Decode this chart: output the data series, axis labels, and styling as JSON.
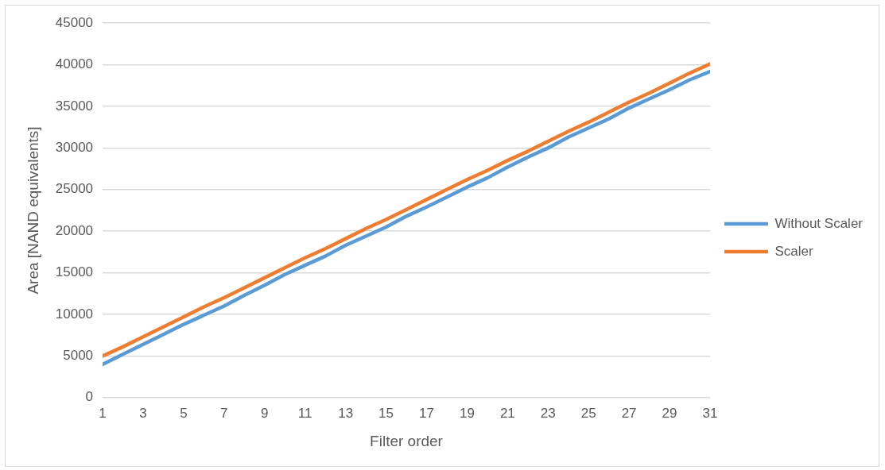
{
  "chart_data": {
    "type": "line",
    "xlabel": "Filter order",
    "ylabel": "Area [NAND equivalents]",
    "x": [
      1,
      2,
      3,
      4,
      5,
      6,
      7,
      8,
      9,
      10,
      11,
      12,
      13,
      14,
      15,
      16,
      17,
      18,
      19,
      20,
      21,
      22,
      23,
      24,
      25,
      26,
      27,
      28,
      29,
      30,
      31
    ],
    "xlim": [
      1,
      31
    ],
    "xticks": [
      1,
      3,
      5,
      7,
      9,
      11,
      13,
      15,
      17,
      19,
      21,
      23,
      25,
      27,
      29,
      31
    ],
    "series": [
      {
        "name": "Without Scaler",
        "color": "#5b9bd5",
        "values": [
          4000,
          5200,
          6400,
          7600,
          8800,
          9900,
          11000,
          12300,
          13500,
          14800,
          15900,
          17000,
          18300,
          19400,
          20500,
          21800,
          22900,
          24100,
          25300,
          26400,
          27700,
          28900,
          30000,
          31300,
          32400,
          33500,
          34800,
          35900,
          37000,
          38200,
          39200
        ]
      },
      {
        "name": "Scaler",
        "color": "#ed7d31",
        "values": [
          5000,
          6100,
          7300,
          8500,
          9700,
          10900,
          12000,
          13200,
          14400,
          15600,
          16800,
          17900,
          19100,
          20300,
          21400,
          22600,
          23800,
          25000,
          26200,
          27300,
          28500,
          29600,
          30800,
          32000,
          33100,
          34300,
          35500,
          36600,
          37800,
          39000,
          40100
        ]
      }
    ],
    "ylim": [
      0,
      45000
    ],
    "yticks": [
      0,
      5000,
      10000,
      15000,
      20000,
      25000,
      30000,
      35000,
      40000,
      45000
    ],
    "grid": "y",
    "legend": "right",
    "marker": "none",
    "line_style": "solid"
  }
}
